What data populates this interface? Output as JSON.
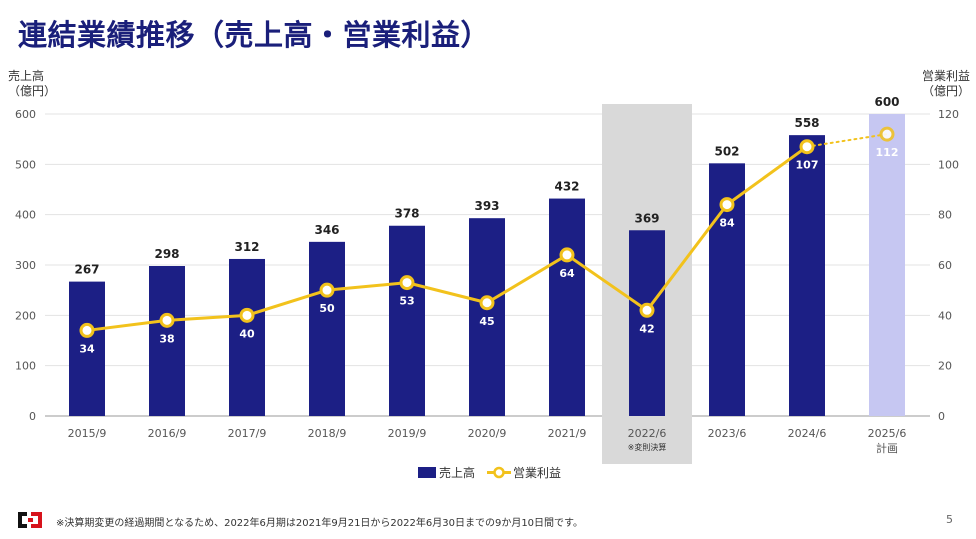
{
  "page": {
    "title": "連結業績推移（売上高・営業利益）",
    "footnote": "※決算期変更の経過期間となるため、2022年6月期は2021年9月21日から2022年6月30日までの9か月10日間です。",
    "page_number": "5"
  },
  "colors": {
    "bar": "#1c1f85",
    "bar_plan": "#c6c7f2",
    "line": "#f2c21c",
    "highlight_band": "#d9d9d9",
    "title": "#1a1f7a",
    "grid": "#e3e3e3",
    "logo_red": "#d7131c"
  },
  "chart_data": {
    "type": "bar+line",
    "categories": [
      "2015/9",
      "2016/9",
      "2017/9",
      "2018/9",
      "2019/9",
      "2020/9",
      "2021/9",
      "2022/6",
      "2023/6",
      "2024/6",
      "2025/6"
    ],
    "category_notes": [
      "",
      "",
      "",
      "",
      "",
      "",
      "",
      "※変則決算",
      "",
      "",
      "計画"
    ],
    "highlight_category": "2022/6",
    "plan_category": "2025/6",
    "series": [
      {
        "name": "売上高",
        "type": "bar",
        "axis": "left",
        "values": [
          267,
          298,
          312,
          346,
          378,
          393,
          432,
          369,
          502,
          558,
          600
        ]
      },
      {
        "name": "営業利益",
        "type": "line",
        "axis": "right",
        "values": [
          34,
          38,
          40,
          50,
          53,
          45,
          64,
          42,
          84,
          107,
          112
        ]
      }
    ],
    "left_axis": {
      "label_line1": "売上高",
      "label_line2": "（億円）",
      "min": 0,
      "max": 600,
      "ticks": [
        0,
        100,
        200,
        300,
        400,
        500,
        600
      ]
    },
    "right_axis": {
      "label_line1": "営業利益",
      "label_line2": "（億円）",
      "min": 0,
      "max": 120,
      "ticks": [
        0,
        20,
        40,
        60,
        80,
        100,
        120
      ]
    },
    "legend": {
      "position": "bottom-center",
      "items": [
        "売上高",
        "営業利益"
      ]
    }
  }
}
